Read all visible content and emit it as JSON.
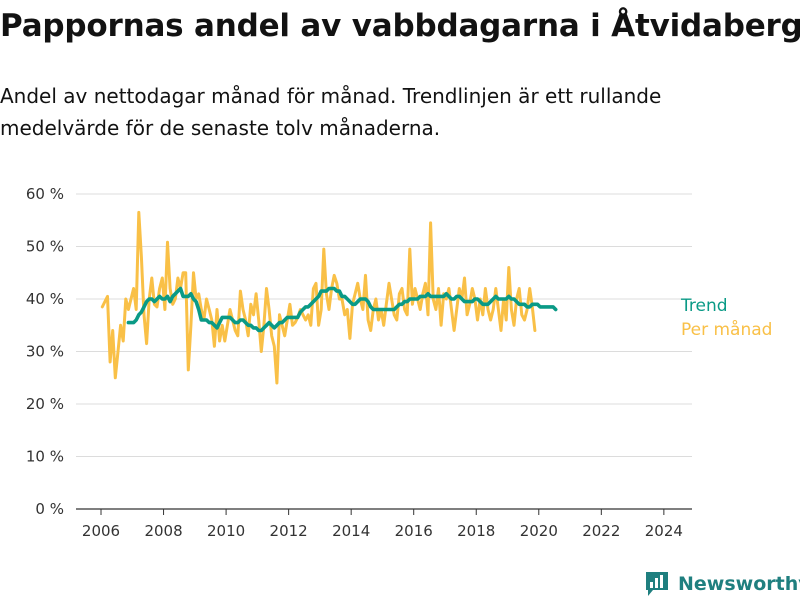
{
  "colors": {
    "trend": "#0a9a86",
    "monthly": "#f9c047",
    "grid": "#dcdcdc",
    "axis": "#333333",
    "brand": "#1f7f7f"
  },
  "brand": {
    "name": "Newsworthy",
    "icon": "bar-chart-logo-icon"
  },
  "chart_data": {
    "type": "line",
    "title": "Pappornas andel av vabbdagarna i Åtvidaberg",
    "subtitle": "Andel av nettodagar månad för månad. Trendlinjen är ett rullande medelvärde för de senaste tolv månaderna.",
    "ylim": [
      0,
      60
    ],
    "xlim": [
      2005.2,
      2024.9
    ],
    "y_ticks": [
      {
        "value": 0,
        "label": "0 %"
      },
      {
        "value": 10,
        "label": "10 %"
      },
      {
        "value": 20,
        "label": "20 %"
      },
      {
        "value": 30,
        "label": "30 %"
      },
      {
        "value": 40,
        "label": "40 %"
      },
      {
        "value": 50,
        "label": "50 %"
      },
      {
        "value": 60,
        "label": "60 %"
      }
    ],
    "x_ticks": [
      "2006",
      "2008",
      "2010",
      "2012",
      "2014",
      "2016",
      "2018",
      "2020",
      "2022",
      "2024"
    ],
    "grid": "horizontal",
    "series": [
      {
        "name": "Trend",
        "key": "trend",
        "x_start": "2006-11",
        "step": "month",
        "values": [
          35.5,
          35.5,
          35.5,
          36,
          37,
          37.5,
          38.5,
          39.5,
          40,
          40,
          39.5,
          40,
          40.5,
          40,
          40,
          40.5,
          39.5,
          40.5,
          41,
          41.5,
          42,
          40.5,
          40.5,
          40.5,
          41,
          40,
          39.5,
          38,
          36,
          36,
          36,
          35.5,
          35.5,
          35,
          34.5,
          35.5,
          36.5,
          36.5,
          36.5,
          36.5,
          36,
          35.5,
          35.5,
          36,
          36,
          35.5,
          35,
          35,
          34.5,
          34.5,
          34,
          34,
          34.5,
          35,
          35.5,
          35,
          34.5,
          35,
          35.5,
          35.5,
          36,
          36.5,
          36.5,
          36.5,
          36.5,
          36.5,
          37.5,
          38,
          38.5,
          38.5,
          39,
          39.5,
          40,
          40.5,
          41.5,
          41.5,
          41.5,
          42,
          42,
          42,
          41.5,
          41.5,
          40.5,
          40.5,
          40,
          39.5,
          39,
          39,
          39.5,
          40,
          40,
          40,
          39.5,
          38.5,
          38,
          38,
          38,
          38,
          38,
          38,
          38,
          38,
          38,
          38.5,
          39,
          39,
          39.5,
          39.5,
          40,
          40,
          40,
          40,
          40.5,
          40.5,
          40.5,
          41,
          40.5,
          40.5,
          40.5,
          40.5,
          40.5,
          40.5,
          41,
          40.5,
          40,
          40,
          40.5,
          40.5,
          40,
          39.5,
          39.5,
          39.5,
          39.5,
          40,
          40,
          39.5,
          39,
          39,
          39,
          39.5,
          40,
          40.5,
          40,
          40,
          40,
          40,
          40.5,
          40,
          40,
          39.5,
          39,
          39,
          39,
          38.5,
          38.5,
          39,
          39,
          39,
          38.5,
          38.5,
          38.5,
          38.5,
          38.5,
          38.5,
          38
        ]
      },
      {
        "name": "Per månad",
        "key": "monthly",
        "x_start": "2006-01",
        "step": "month",
        "values": [
          38.5,
          39.5,
          40.5,
          28,
          34,
          25,
          30,
          35,
          32,
          40,
          38,
          40,
          42,
          38,
          56.5,
          48,
          37,
          31.5,
          40,
          44,
          39,
          38.5,
          42,
          44,
          38,
          50.8,
          42,
          39,
          40,
          44,
          42,
          45,
          45,
          26.5,
          35,
          45,
          40,
          41,
          38,
          36,
          40,
          38,
          36,
          31,
          38,
          32,
          35,
          32,
          35,
          38,
          36,
          34,
          33,
          41.5,
          38,
          36,
          33,
          39,
          37,
          41,
          36,
          30,
          35,
          42,
          38,
          33,
          31,
          24,
          37,
          35,
          33,
          36,
          39,
          35,
          35.5,
          36.5,
          38,
          37,
          36,
          37,
          35,
          42,
          43,
          35,
          38,
          49.5,
          41,
          38,
          42,
          44.5,
          43,
          40,
          40,
          37,
          38,
          32.5,
          39,
          41,
          43,
          40,
          38,
          44.5,
          36,
          34,
          38,
          40,
          36,
          38,
          35,
          39,
          43,
          40,
          37,
          36,
          41,
          42,
          38,
          37,
          49.5,
          39,
          42,
          40,
          38,
          41,
          43,
          37,
          54.5,
          40,
          38,
          42,
          35,
          41,
          40,
          42,
          38,
          34,
          38,
          42,
          40,
          44,
          37,
          39,
          42,
          40,
          36,
          40,
          37,
          42,
          38,
          36,
          38,
          42,
          38,
          34,
          40,
          36,
          46,
          38,
          35,
          40,
          42,
          37,
          36,
          38,
          42,
          38.5,
          34
        ]
      }
    ]
  }
}
